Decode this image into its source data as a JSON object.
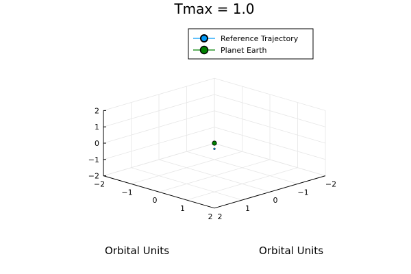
{
  "chart_data": {
    "type": "scatter",
    "title": "Tmax = 1.0",
    "xlabel": "Orbital Units",
    "ylabel": "Orbital Units",
    "zlabel": "",
    "xlim": [
      -2,
      2
    ],
    "ylim": [
      -2,
      2
    ],
    "zlim": [
      -2,
      2
    ],
    "ticks": [
      -2,
      -1,
      0,
      1,
      2
    ],
    "tick_labels": [
      "−2",
      "−1",
      "0",
      "1",
      "2"
    ],
    "grid": true,
    "legend_position": "top-right",
    "series": [
      {
        "name": "Reference Trajectory",
        "marker_color": "#009af9",
        "line_color": "#009af9",
        "points": [
          {
            "x": 0.15,
            "y": 0.15,
            "z": -0.2
          }
        ]
      },
      {
        "name": "Planet Earth",
        "marker_color": "#008000",
        "line_color": "#008000",
        "points": [
          {
            "x": 0,
            "y": 0,
            "z": 0
          }
        ]
      }
    ]
  }
}
